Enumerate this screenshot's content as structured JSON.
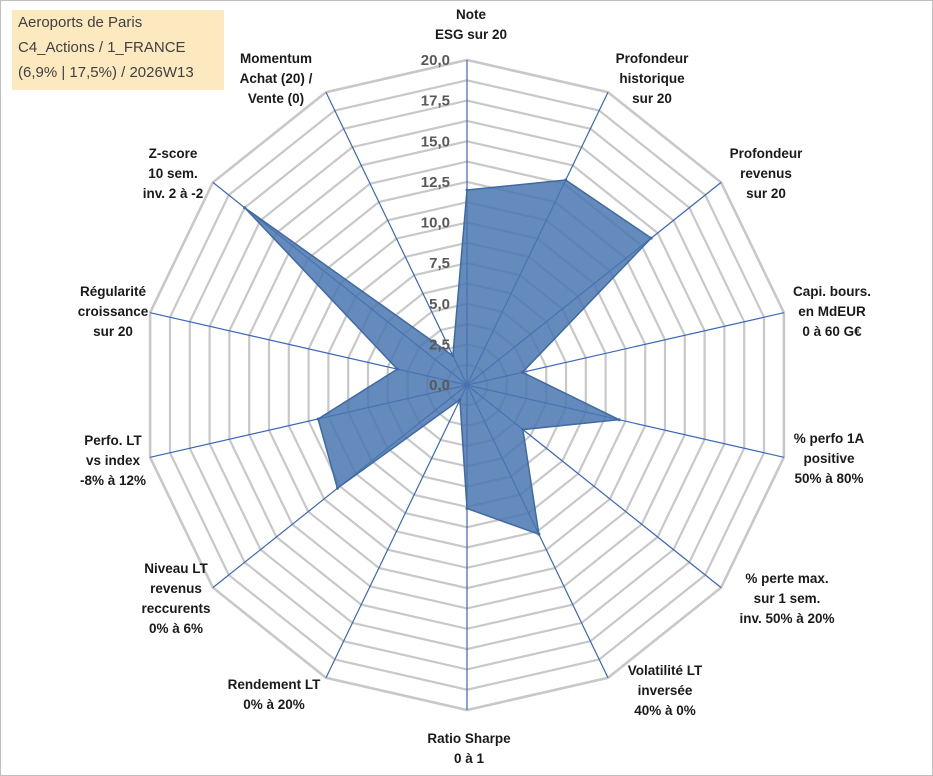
{
  "info_box": {
    "line1": "Aeroports de Paris",
    "line2": "C4_Actions / 1_FRANCE",
    "line3": "(6,9% | 17,5%) / 2026W13"
  },
  "chart_data": {
    "type": "radar",
    "title": "Aeroports de Paris",
    "range": [
      0,
      20
    ],
    "tick_values": [
      0,
      2.5,
      5,
      7.5,
      10,
      12.5,
      15,
      17.5,
      20
    ],
    "tick_labels": [
      "0,0",
      "2,5",
      "5,0",
      "7,5",
      "10,0",
      "12,5",
      "15,0",
      "17,5",
      "20,0"
    ],
    "axes": [
      {
        "label": [
          "Note",
          "ESG sur 20"
        ],
        "value": 12.0
      },
      {
        "label": [
          "Profondeur",
          "historique",
          "sur 20"
        ],
        "value": 14.0
      },
      {
        "label": [
          "Profondeur",
          "revenus",
          "sur 20"
        ],
        "value": 14.5
      },
      {
        "label": [
          "Capi. bours.",
          "en MdEUR",
          "0 à 60 G€"
        ],
        "value": 3.5
      },
      {
        "label": [
          "% perfo 1A",
          "positive",
          "50% à 80%"
        ],
        "value": 9.6
      },
      {
        "label": [
          "% perte max.",
          "sur 1 sem.",
          "inv. 50% à 20%"
        ],
        "value": 4.4
      },
      {
        "label": [
          "Volatilité LT",
          "inversée",
          "40% à 0%"
        ],
        "value": 10.2
      },
      {
        "label": [
          "Ratio Sharpe",
          "0 à 1"
        ],
        "value": 7.6
      },
      {
        "label": [
          "Rendement LT",
          "0% à 20%"
        ],
        "value": 1.0
      },
      {
        "label": [
          "Niveau LT",
          "revenus",
          "reccurents",
          "0% à 6%"
        ],
        "value": 10.2
      },
      {
        "label": [
          "Perfo. LT",
          "vs index",
          "-8% à 12%"
        ],
        "value": 9.4
      },
      {
        "label": [
          "Régularité",
          "croissance",
          "sur 20"
        ],
        "value": 4.4
      },
      {
        "label": [
          "Z-score",
          "10 sem.",
          "inv. 2 à -2"
        ],
        "value": 17.5
      },
      {
        "label": [
          "Momentum",
          "Achat (20) /",
          "Vente (0)"
        ],
        "value": 2.0
      }
    ],
    "colors": {
      "series_fill": "#4a76b0",
      "series_stroke": "#3f6aa3",
      "spoke": "#3a66b8",
      "grid": "#c8c8c8"
    }
  }
}
